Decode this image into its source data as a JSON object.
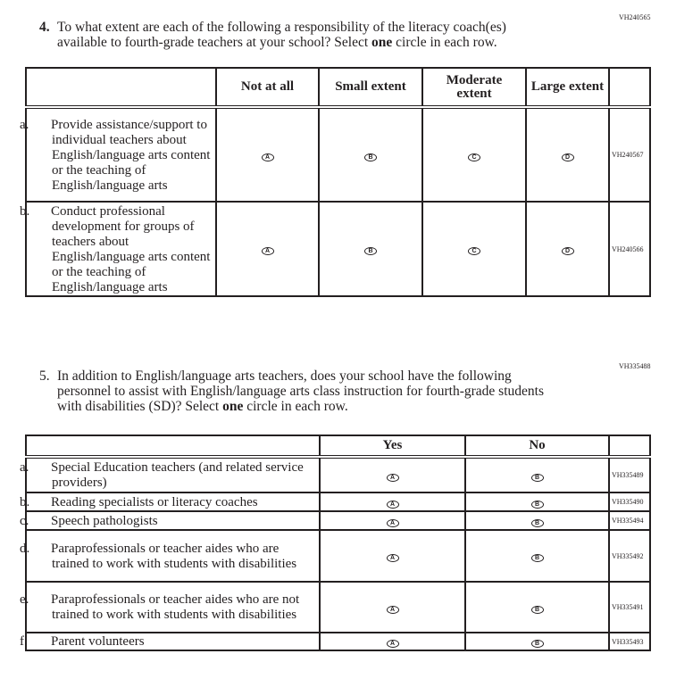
{
  "q4": {
    "id": "VH240565",
    "number": "4.",
    "text_pre": "To what extent are each of the following a responsibility of the literacy coach(es) available to fourth-grade teachers at your school? Select ",
    "text_bold": "one",
    "text_post": " circle in each row.",
    "columns": [
      "Not at all",
      "Small extent",
      "Moderate extent",
      "Large extent"
    ],
    "options": [
      "A",
      "B",
      "C",
      "D"
    ],
    "rows": [
      {
        "letter": "a.",
        "label": "Provide assistance/support to individual teachers about English/language arts content or the teaching of English/language arts",
        "id": "VH240567"
      },
      {
        "letter": "b.",
        "label": "Conduct professional development for groups of teachers about English/language arts content or the teaching of English/language arts",
        "id": "VH240566"
      }
    ]
  },
  "q5": {
    "id": "VH335488",
    "number": "5.",
    "text_pre": "In addition to English/language arts teachers, does your school have the following personnel to assist with English/language arts class instruction for fourth-grade students with disabilities (SD)? Select ",
    "text_bold": "one",
    "text_post": " circle in each row.",
    "columns": [
      "Yes",
      "No"
    ],
    "options": [
      "A",
      "B"
    ],
    "rows": [
      {
        "letter": "a.",
        "label": "Special Education teachers (and related service providers)",
        "id": "VH335489"
      },
      {
        "letter": "b.",
        "label": "Reading specialists or literacy coaches",
        "id": "VH335490"
      },
      {
        "letter": "c.",
        "label": "Speech pathologists",
        "id": "VH335494"
      },
      {
        "letter": "d.",
        "label": "Paraprofessionals or teacher aides who are trained to work with students with disabilities",
        "id": "VH335492"
      },
      {
        "letter": "e.",
        "label": "Paraprofessionals or teacher aides who are not trained to work with students with disabilities",
        "id": "VH335491"
      },
      {
        "letter": "f.",
        "label": "Parent volunteers",
        "id": "VH335493"
      }
    ]
  }
}
